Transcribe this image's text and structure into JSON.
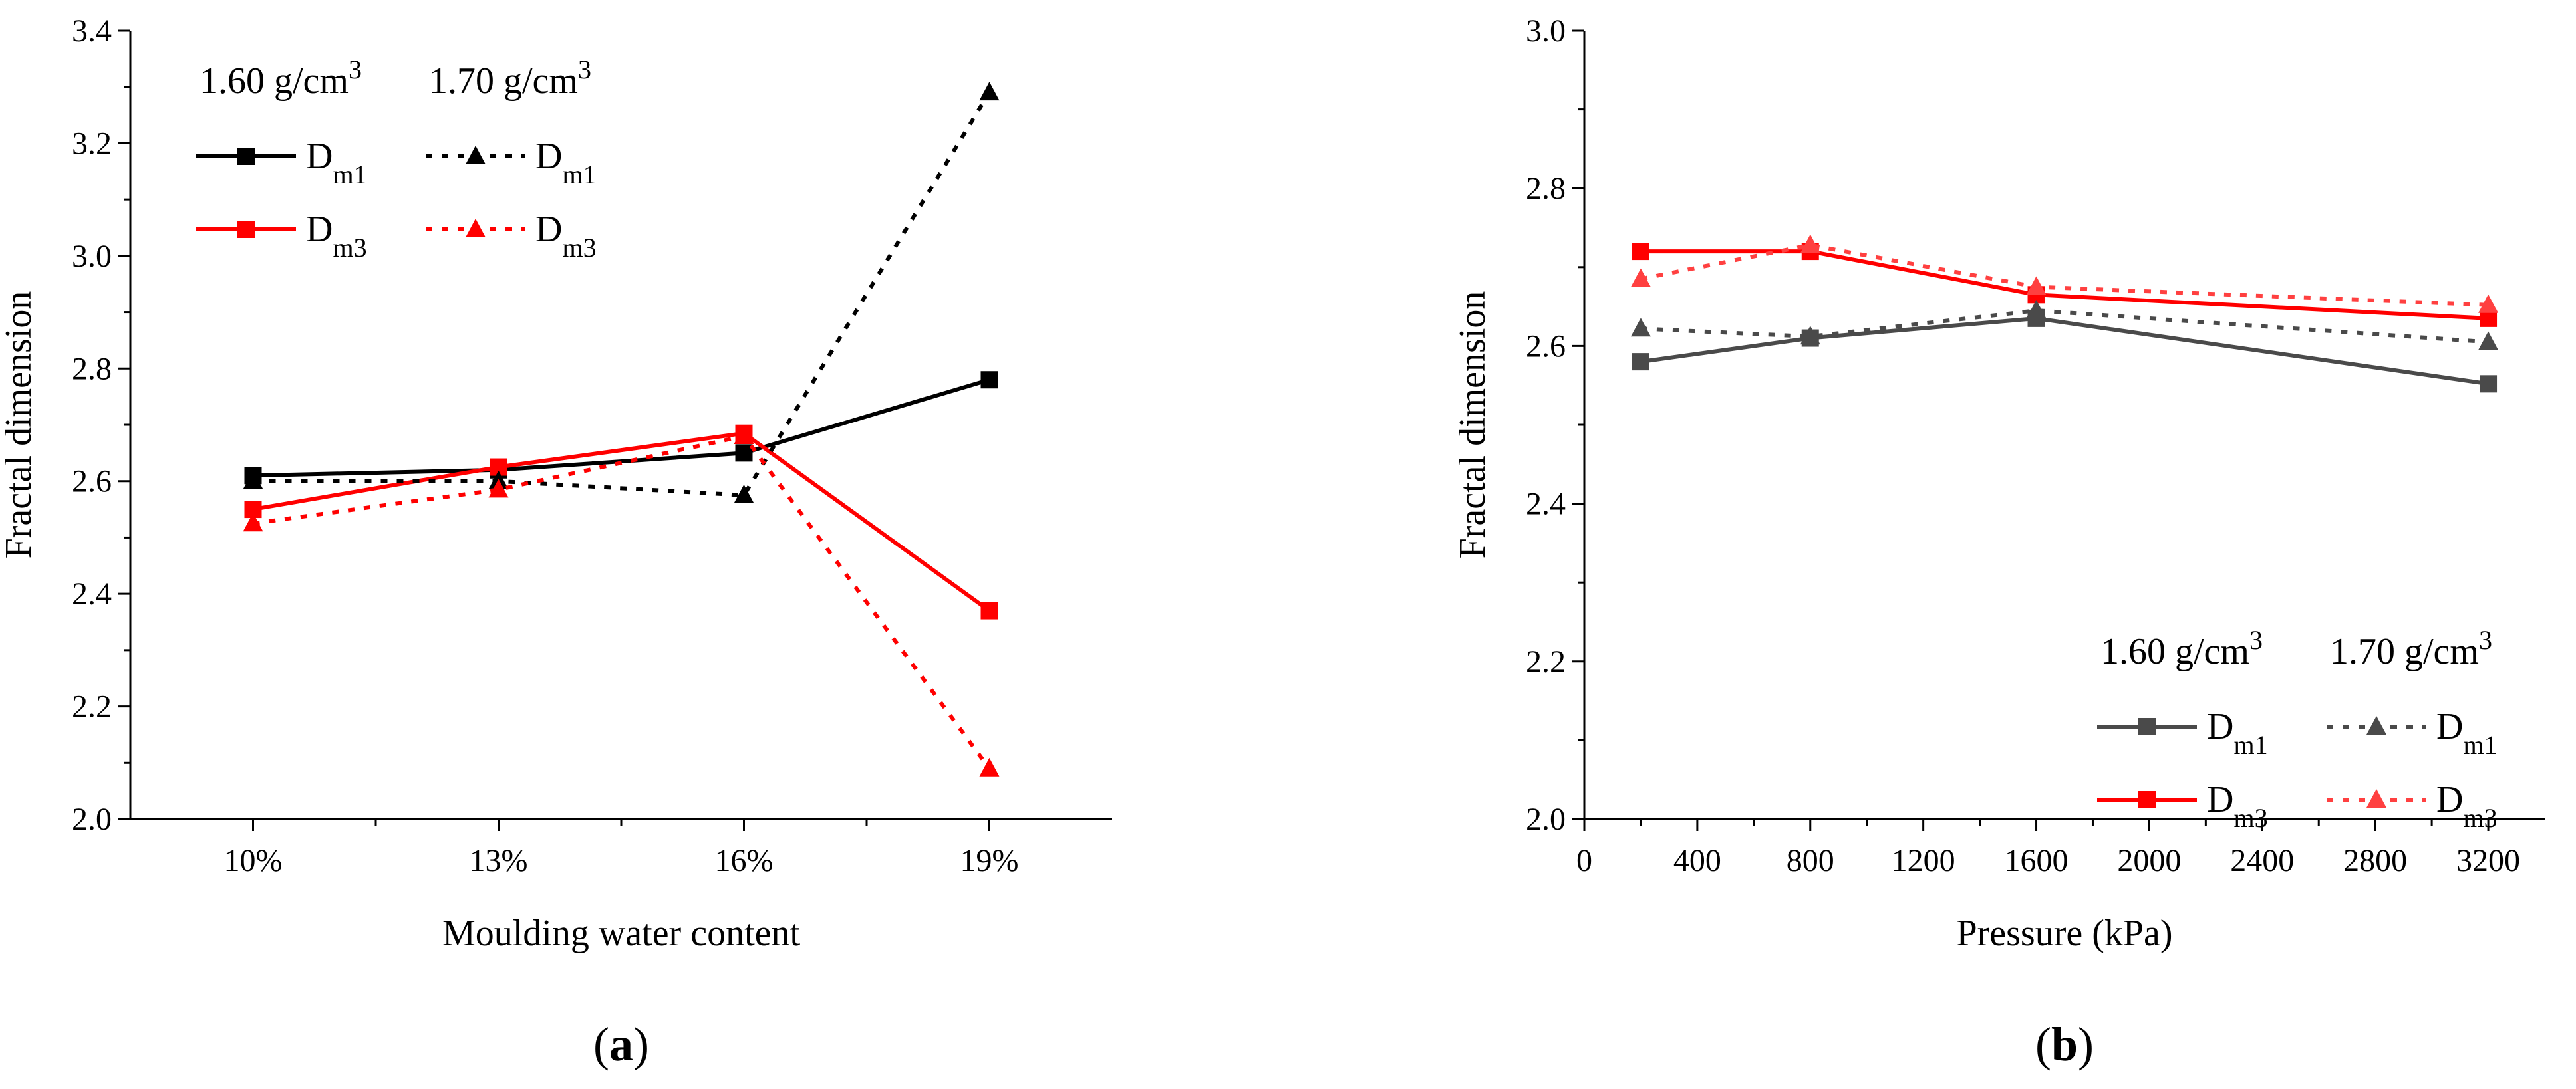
{
  "chart_data": [
    {
      "panel_label_open": "(",
      "panel_label": "a",
      "panel_label_close": ")",
      "type": "line",
      "xlabel": "Moulding water content",
      "ylabel": "Fractal dimension",
      "categories": [
        "10%",
        "13%",
        "16%",
        "19%"
      ],
      "ylim": [
        2.0,
        3.4
      ],
      "yticks": [
        "2.0",
        "2.2",
        "2.4",
        "2.6",
        "2.8",
        "3.0",
        "3.2",
        "3.4"
      ],
      "legend": {
        "position": "top-left",
        "group_headers": [
          {
            "base": "1.60 g/cm",
            "sup": "3"
          },
          {
            "base": "1.70 g/cm",
            "sup": "3"
          }
        ]
      },
      "series": [
        {
          "name": "D",
          "sub": "m1",
          "group": "1.60 g/cm3",
          "color": "#000000",
          "marker": "square",
          "dash": "solid",
          "values": [
            2.61,
            2.62,
            2.65,
            2.78
          ]
        },
        {
          "name": "D",
          "sub": "m3",
          "group": "1.60 g/cm3",
          "color": "#ff0000",
          "marker": "square",
          "dash": "solid",
          "values": [
            2.55,
            2.625,
            2.685,
            2.37
          ]
        },
        {
          "name": "D",
          "sub": "m1",
          "group": "1.70 g/cm3",
          "color": "#000000",
          "marker": "triangle",
          "dash": "dotted",
          "values": [
            2.6,
            2.6,
            2.575,
            3.29
          ]
        },
        {
          "name": "D",
          "sub": "m3",
          "group": "1.70 g/cm3",
          "color": "#ff0000",
          "marker": "triangle",
          "dash": "dotted",
          "values": [
            2.525,
            2.585,
            2.68,
            2.09
          ]
        }
      ]
    },
    {
      "panel_label_open": "(",
      "panel_label": "b",
      "panel_label_close": ")",
      "type": "line",
      "xlabel": "Pressure (kPa)",
      "ylabel": "Fractal dimension",
      "x": [
        200,
        800,
        1600,
        3200
      ],
      "xlim": [
        0,
        3400
      ],
      "xticks": [
        "0",
        "400",
        "800",
        "1200",
        "1600",
        "2000",
        "2400",
        "2800",
        "3200"
      ],
      "ylim": [
        2.0,
        3.0
      ],
      "yticks": [
        "2.0",
        "2.2",
        "2.4",
        "2.6",
        "2.8",
        "3.0"
      ],
      "legend": {
        "position": "bottom-right",
        "group_headers": [
          {
            "base": "1.60 g/cm",
            "sup": "3"
          },
          {
            "base": "1.70 g/cm",
            "sup": "3"
          }
        ]
      },
      "series": [
        {
          "name": "D",
          "sub": "m1",
          "group": "1.60 g/cm3",
          "color": "#4a4a4a",
          "marker": "square",
          "dash": "solid",
          "values": [
            2.58,
            2.61,
            2.635,
            2.552
          ]
        },
        {
          "name": "D",
          "sub": "m3",
          "group": "1.60 g/cm3",
          "color": "#ff0000",
          "marker": "square",
          "dash": "solid",
          "values": [
            2.72,
            2.72,
            2.665,
            2.635
          ]
        },
        {
          "name": "D",
          "sub": "m1",
          "group": "1.70 g/cm3",
          "color": "#4a4a4a",
          "marker": "triangle",
          "dash": "dotted",
          "values": [
            2.622,
            2.612,
            2.645,
            2.605
          ]
        },
        {
          "name": "D",
          "sub": "m3",
          "group": "1.70 g/cm3",
          "color": "#ff4040",
          "marker": "triangle",
          "dash": "dotted",
          "values": [
            2.685,
            2.728,
            2.675,
            2.652
          ]
        }
      ]
    }
  ]
}
